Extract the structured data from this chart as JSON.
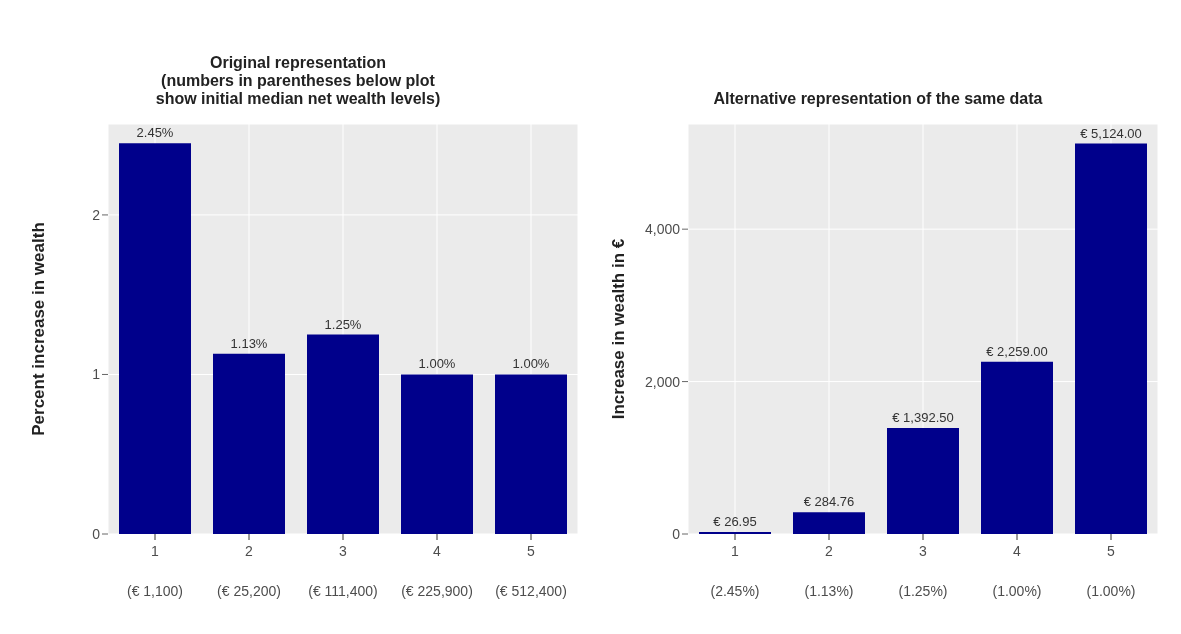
{
  "chart_data": [
    {
      "type": "bar",
      "title": "Original representation\n(numbers in parentheses below plot\nshow initial median net wealth levels)",
      "ylabel": "Percent increase in wealth",
      "categories": [
        "1",
        "2",
        "3",
        "4",
        "5"
      ],
      "values": [
        2.45,
        1.13,
        1.25,
        1.0,
        1.0
      ],
      "color": "#00008b",
      "value_labels": [
        "2.45%",
        "1.13%",
        "1.25%",
        "1.00%",
        "1.00%"
      ],
      "ylim": [
        0,
        2.57
      ],
      "yticks": [
        0,
        1,
        2
      ],
      "grid": true,
      "annotations": [
        "(€ 1,100)",
        "(€ 25,200)",
        "(€ 111,400)",
        "(€ 225,900)",
        "(€ 512,400)"
      ]
    },
    {
      "type": "bar",
      "title": "Alternative representation of the same data",
      "ylabel": "Increase in wealth in €",
      "categories": [
        "1",
        "2",
        "3",
        "4",
        "5"
      ],
      "values": [
        26.95,
        284.76,
        1392.5,
        2259.0,
        5124.0
      ],
      "color": "#00008b",
      "value_labels": [
        "€ 26.95",
        "€ 284.76",
        "€ 1,392.50",
        "€ 2,259.00",
        "€ 5,124.00"
      ],
      "ylim": [
        0,
        5380
      ],
      "yticks": [
        0,
        {
          "value": 2000,
          "label": "2,000"
        },
        {
          "value": 4000,
          "label": "4,000"
        }
      ],
      "grid": true,
      "annotations": [
        "(2.45%)",
        "(1.13%)",
        "(1.25%)",
        "(1.00%)",
        "(1.00%)"
      ]
    }
  ]
}
